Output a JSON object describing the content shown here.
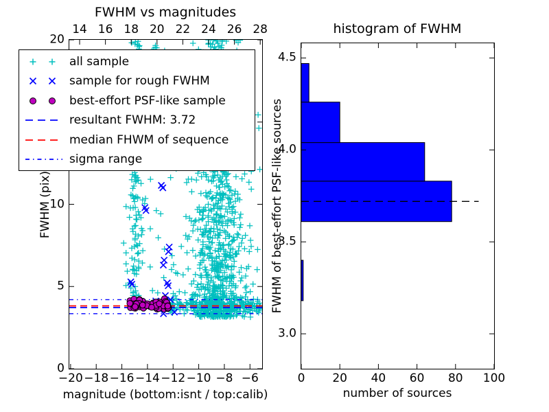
{
  "colors": {
    "cyan": "#00bfbf",
    "blue": "#0000ff",
    "magenta": "#bf00bf",
    "red": "#ff0000",
    "black": "#000000",
    "bar_fill": "#0000ff",
    "background": "#ffffff"
  },
  "left_plot": {
    "title": "FWHM vs magnitudes",
    "xlabel": "magnitude (bottom:isnt / top:calib)",
    "ylabel": "FWHM (pix)",
    "bottom_tick_labels": [
      "−20",
      "−18",
      "−16",
      "−14",
      "−12",
      "−10",
      "−8",
      "−6"
    ],
    "top_tick_labels": [
      "14",
      "16",
      "18",
      "20",
      "22",
      "24",
      "26",
      "28"
    ],
    "y_tick_labels": [
      "0",
      "5",
      "10",
      "15",
      "20"
    ]
  },
  "legend": {
    "entries": [
      {
        "label": "all sample",
        "type": "marker",
        "marker": "plus",
        "color": "#00bfbf"
      },
      {
        "label": "sample for rough FWHM",
        "type": "marker",
        "marker": "x",
        "color": "#0000ff"
      },
      {
        "label": "best-effort PSF-like sample",
        "type": "marker",
        "marker": "circle",
        "color": "#bf00bf"
      },
      {
        "label": "resultant FWHM: 3.72",
        "type": "line",
        "style": "dashed",
        "color": "#0000ff"
      },
      {
        "label": "median FHWM of sequence",
        "type": "line",
        "style": "dashed",
        "color": "#ff0000"
      },
      {
        "label": "sigma range",
        "type": "line",
        "style": "dashdot",
        "color": "#0000ff"
      }
    ]
  },
  "right_plot": {
    "title": "histogram of FWHM",
    "xlabel": "number of sources",
    "ylabel": "FWHM of best-effort PSF-like sources",
    "x_tick_labels": [
      "0",
      "20",
      "40",
      "60",
      "80",
      "100"
    ],
    "y_tick_labels": [
      "3.0",
      "3.5",
      "4.0",
      "4.5"
    ]
  },
  "chart_data": [
    {
      "type": "scatter",
      "title": "FWHM vs magnitudes",
      "xlabel": "magnitude (bottom:isnt / top:calib)",
      "ylabel": "FWHM (pix)",
      "xlim": [
        -20.1,
        -5.05
      ],
      "ylim": [
        0,
        20
      ],
      "x_ticks": [
        -20,
        -18,
        -16,
        -14,
        -12,
        -10,
        -8,
        -6
      ],
      "y_ticks": [
        0,
        5,
        10,
        15,
        20
      ],
      "top_axis_lim": [
        13.2,
        28.15
      ],
      "top_axis_ticks": [
        14,
        16,
        18,
        20,
        22,
        24,
        26,
        28
      ],
      "grid": false,
      "legend_position": "upper left",
      "series": [
        {
          "name": "all sample",
          "marker": "plus",
          "color": "#00bfbf",
          "clusters": [
            {
              "name": "vertical-column",
              "x_mean": -14.85,
              "x_sigma": 0.3,
              "y_min": 3.9,
              "y_max": 20.0,
              "y_pow": 1.15,
              "count": 150
            },
            {
              "name": "main-cloud",
              "x_mean": -8.6,
              "x_sigma": 1.0,
              "y_min": 3.15,
              "y_max": 20.0,
              "y_pow": 1.6,
              "count": 950
            },
            {
              "name": "faint-horizontal-band",
              "x_min": -12.6,
              "x_max": -5.15,
              "y_mean": 3.85,
              "y_sigma": 0.26,
              "count": 220
            },
            {
              "name": "sparse-field",
              "x_min": -16.0,
              "x_max": -5.2,
              "y_min": 4.3,
              "y_max": 16.0,
              "count": 85
            },
            {
              "name": "top-edge",
              "x_min": -13.8,
              "x_max": -12.4,
              "y_min": 19.3,
              "y_max": 20.0,
              "count": 6
            }
          ]
        },
        {
          "name": "sample for rough FWHM",
          "marker": "x",
          "color": "#0000ff",
          "points": [
            [
              -12.92,
              11.15
            ],
            [
              -12.8,
              11.0
            ],
            [
              -14.2,
              9.8
            ],
            [
              -14.12,
              9.62
            ],
            [
              -12.3,
              7.4
            ],
            [
              -12.36,
              7.12
            ],
            [
              -12.7,
              6.6
            ],
            [
              -12.76,
              6.3
            ],
            [
              -15.3,
              5.28
            ],
            [
              -15.22,
              5.14
            ],
            [
              -12.45,
              5.22
            ],
            [
              -12.38,
              5.05
            ],
            [
              -12.6,
              4.45
            ],
            [
              -12.2,
              4.2
            ],
            [
              -13.35,
              4.12
            ],
            [
              -11.9,
              3.45
            ],
            [
              -12.75,
              3.35
            ]
          ]
        },
        {
          "name": "best-effort PSF-like sample",
          "marker": "circle",
          "color": "#bf00bf",
          "edge_color": "#000000",
          "cluster": {
            "x_min": -15.5,
            "x_max": -12.35,
            "y_mean": 3.88,
            "y_sigma": 0.17,
            "y_min": 3.5,
            "y_max": 4.3,
            "count": 72
          }
        }
      ],
      "lines": [
        {
          "name": "resultant FWHM",
          "value": 3.72,
          "color": "#0000ff",
          "style": "dashed"
        },
        {
          "name": "median FHWM of sequence",
          "value": 3.82,
          "color": "#ff0000",
          "style": "dashed"
        },
        {
          "name": "sigma range",
          "values": [
            3.35,
            4.2
          ],
          "color": "#0000ff",
          "style": "dashdot"
        }
      ]
    },
    {
      "type": "bar",
      "orientation": "horizontal",
      "title": "histogram of FWHM",
      "xlabel": "number of sources",
      "ylabel": "FWHM of best-effort PSF-like sources",
      "xlim": [
        0,
        100
      ],
      "ylim": [
        2.81,
        4.58
      ],
      "x_ticks": [
        0,
        20,
        40,
        60,
        80,
        100
      ],
      "y_ticks": [
        3.0,
        3.5,
        4.0,
        4.5
      ],
      "bin_edges": [
        3.18,
        3.4,
        3.61,
        3.83,
        4.04,
        4.26,
        4.47
      ],
      "counts": [
        1,
        0,
        78,
        64,
        20,
        4
      ],
      "bar_color": "#0000ff",
      "bar_edge_color": "#000000",
      "dashed_line": {
        "name": "resultant FWHM",
        "value": 3.72,
        "x_start": 0,
        "x_end": 92,
        "color": "#000000",
        "style": "dashed"
      }
    }
  ]
}
